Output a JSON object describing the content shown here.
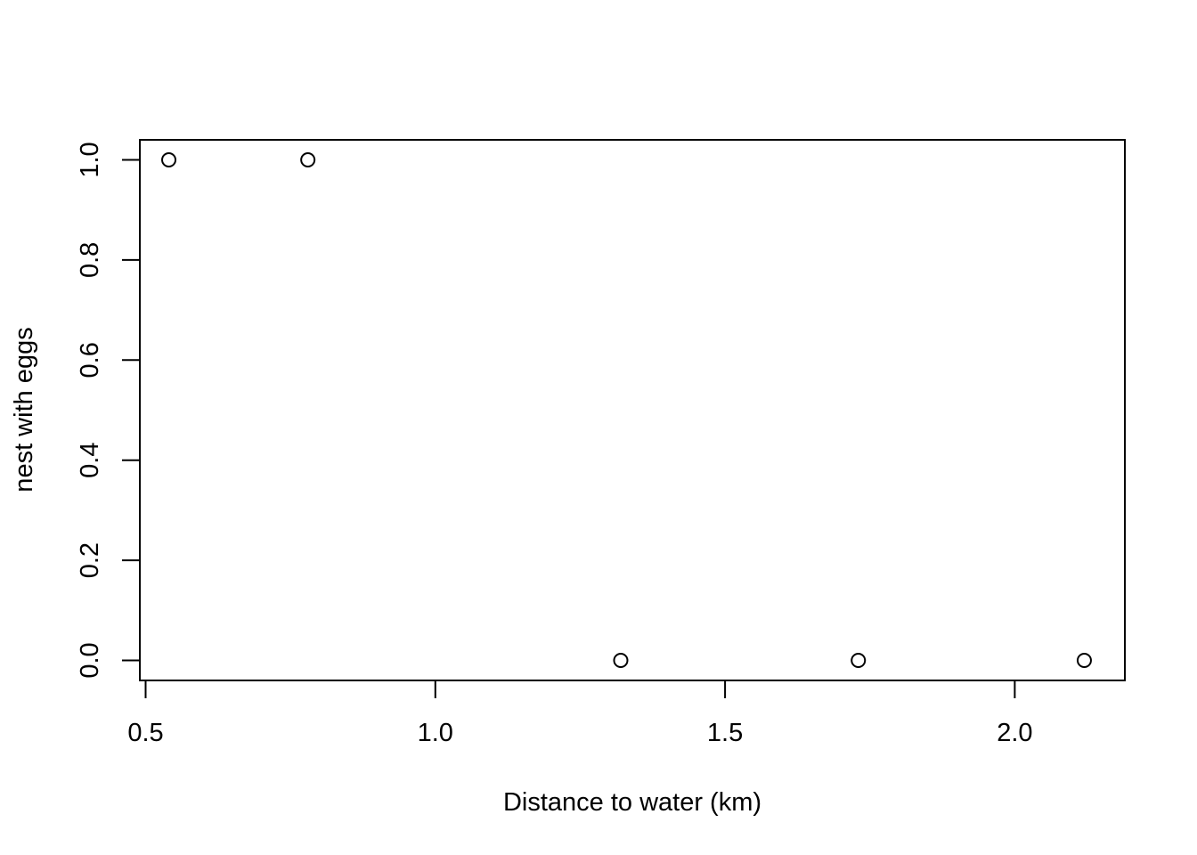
{
  "chart_data": {
    "type": "scatter",
    "title": "",
    "xlabel": "Distance to water (km)",
    "ylabel": "nest with eggs",
    "xlim": [
      0.49,
      2.19
    ],
    "ylim": [
      -0.04,
      1.04
    ],
    "x_ticks": [
      0.5,
      1.0,
      1.5,
      2.0
    ],
    "x_tick_labels": [
      "0.5",
      "1.0",
      "1.5",
      "2.0"
    ],
    "y_ticks": [
      0.0,
      0.2,
      0.4,
      0.6,
      0.8,
      1.0
    ],
    "y_tick_labels": [
      "0.0",
      "0.2",
      "0.4",
      "0.6",
      "0.8",
      "1.0"
    ],
    "grid": false,
    "legend": "none",
    "marker": "open-circle",
    "color": "#000000",
    "series": [
      {
        "x": [
          0.54,
          0.78,
          1.32,
          1.73,
          2.12
        ],
        "y": [
          1,
          1,
          0,
          0,
          0
        ]
      }
    ]
  }
}
